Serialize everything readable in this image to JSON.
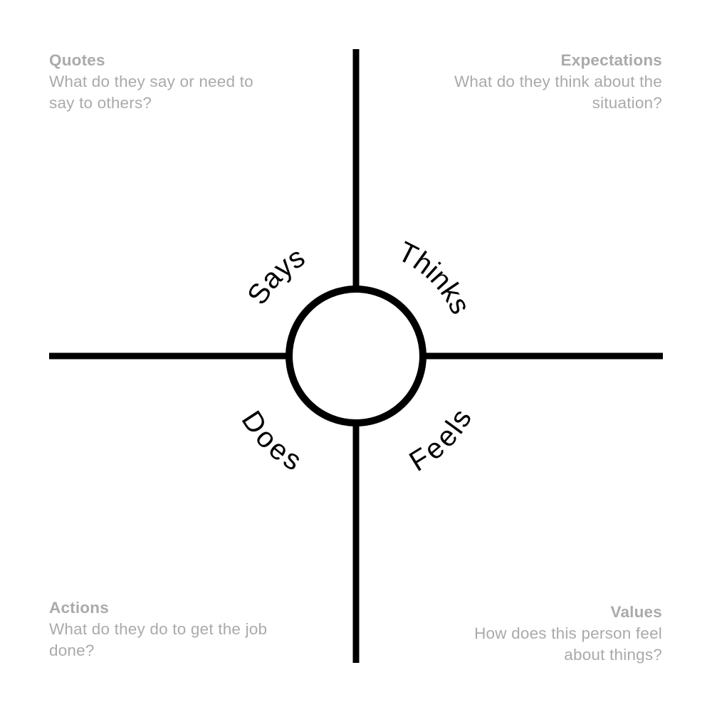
{
  "colors": {
    "line": "#000000",
    "note_text": "#aaaaaa",
    "background": "#ffffff"
  },
  "circle_labels": {
    "says": "Says",
    "thinks": "Thinks",
    "does": "Does",
    "feels": "Feels"
  },
  "quadrants": {
    "top_left": {
      "title": "Quotes",
      "text": "What do they say or need to say to others?"
    },
    "top_right": {
      "title": "Expectations",
      "text": "What do they think about the situation?"
    },
    "bottom_left": {
      "title": "Actions",
      "text": "What do they do to get the job done?"
    },
    "bottom_right": {
      "title": "Values",
      "text": "How does this person feel about things?"
    }
  }
}
